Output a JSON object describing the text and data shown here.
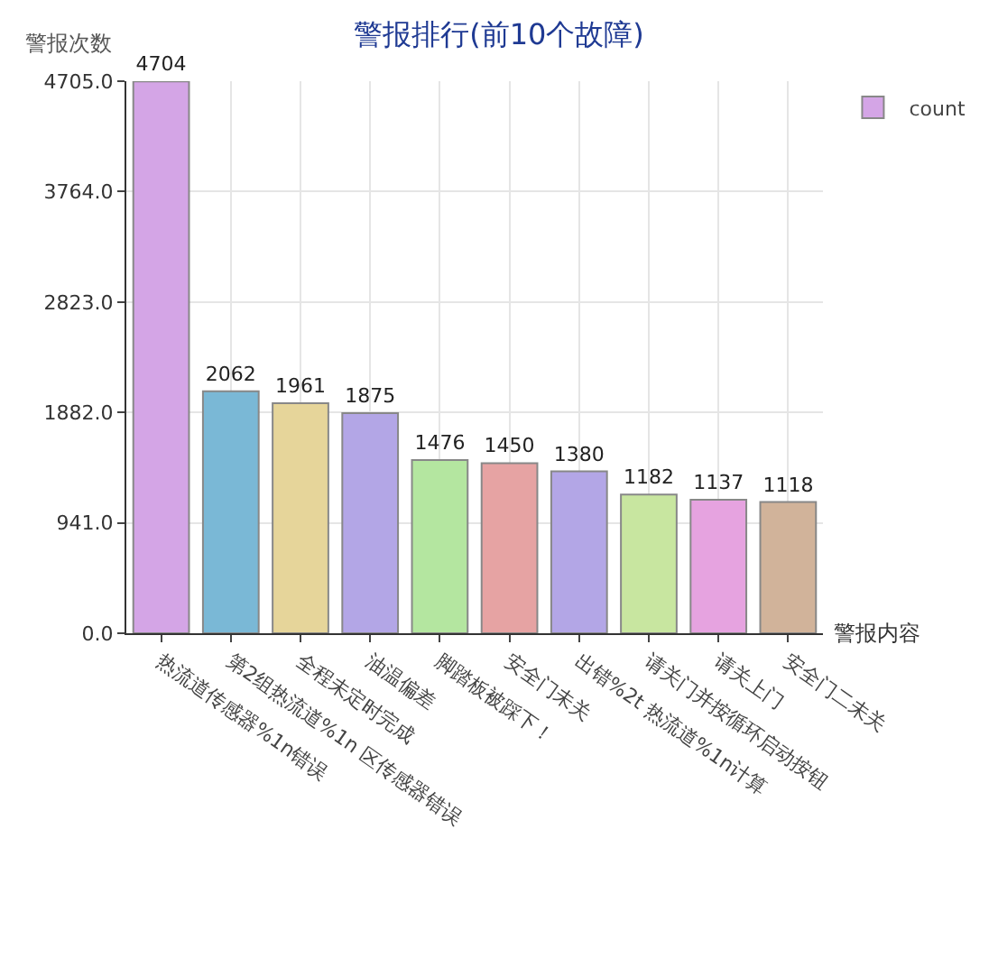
{
  "chart_data": {
    "type": "bar",
    "title": "警报排行(前10个故障)",
    "xlabel": "警报内容",
    "ylabel": "警报次数",
    "categories": [
      "热流道传感器%1n错误",
      "第2组热流道%1n 区传感器错误",
      "全程未定时完成",
      "油温偏差",
      "脚踏板被踩下！",
      "安全门未关",
      "出错%2t 热流道%1n计算",
      "请关门并按循环启动按钮",
      "请关上门",
      "安全门二未关"
    ],
    "series": [
      {
        "name": "count",
        "values": [
          4704,
          2062,
          1961,
          1875,
          1476,
          1450,
          1380,
          1182,
          1137,
          1118
        ],
        "colors": [
          "#d4a5e6",
          "#7ab8d6",
          "#e6d59a",
          "#b3a6e6",
          "#b4e6a0",
          "#e6a3a3",
          "#b3a6e6",
          "#c8e6a0",
          "#e6a3e0",
          "#d1b39a"
        ]
      }
    ],
    "ylim": [
      0,
      4705
    ],
    "yticks": [
      {
        "value": 0,
        "label": "0.0"
      },
      {
        "value": 941,
        "label": "941.0"
      },
      {
        "value": 1882,
        "label": "1882.0"
      },
      {
        "value": 2823,
        "label": "2823.0"
      },
      {
        "value": 3764,
        "label": "3764.0"
      },
      {
        "value": 4705,
        "label": "4705.0"
      }
    ],
    "grid": true,
    "legend": "top right",
    "data_labels": true
  }
}
